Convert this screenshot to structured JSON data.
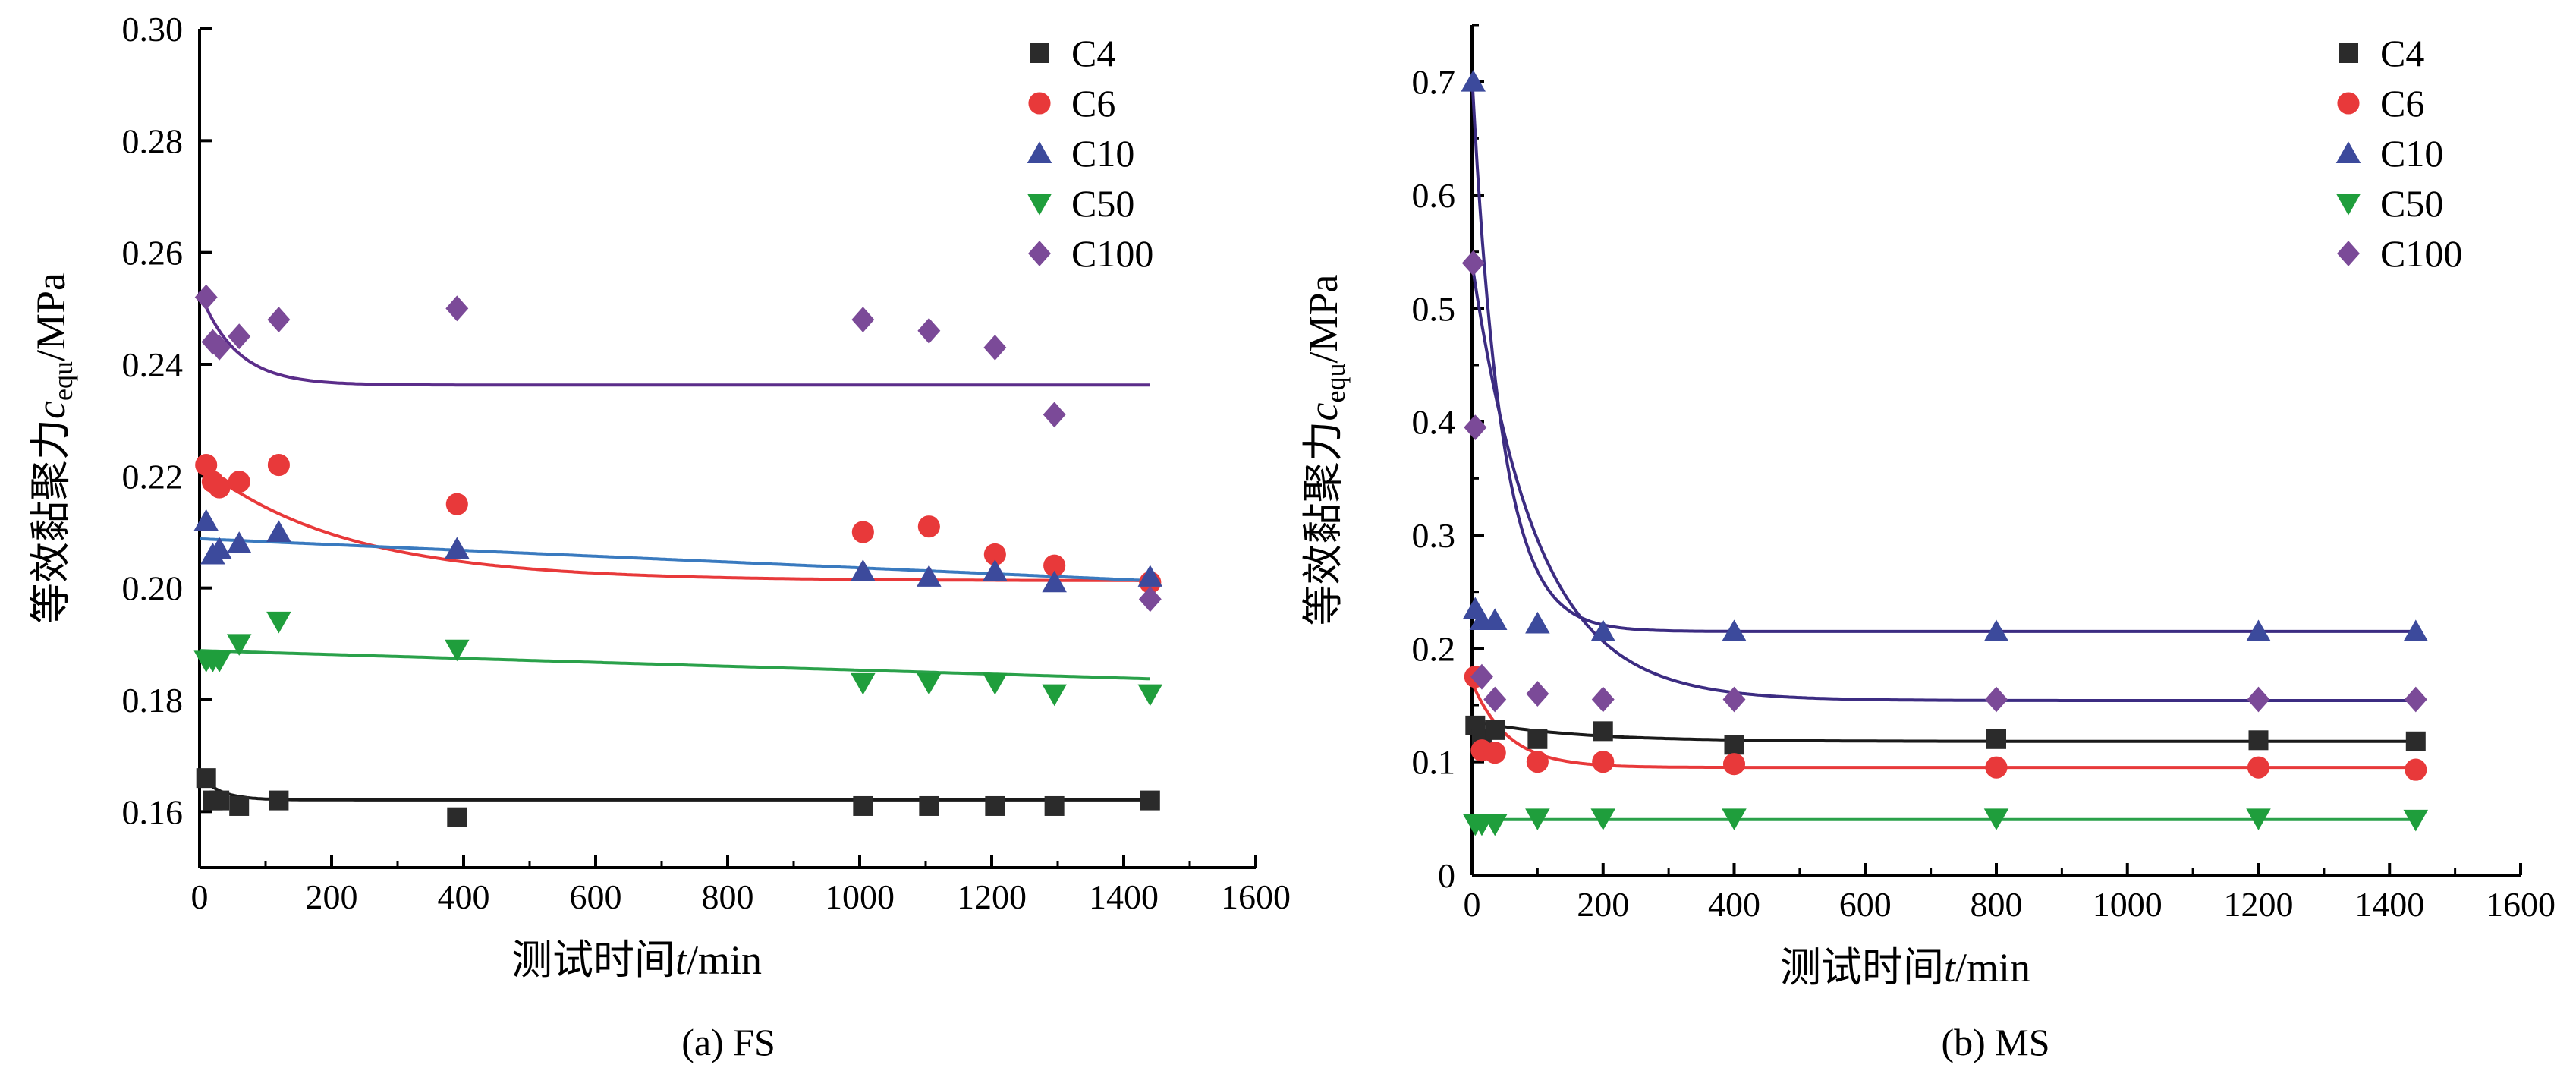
{
  "chart_data": [
    {
      "type": "scatter",
      "caption": "(a) FS",
      "ylabel_parts": [
        "等效黏聚力",
        "c",
        "equ",
        "/MPa"
      ],
      "xlabel_parts": [
        "测试时间",
        "t",
        "/min"
      ],
      "xlim": [
        0,
        1600
      ],
      "ylim": [
        0.15,
        0.3
      ],
      "xticks": [
        0,
        200,
        400,
        600,
        800,
        1000,
        1200,
        1400,
        1600
      ],
      "yticks": [
        0.16,
        0.18,
        0.2,
        0.22,
        0.24,
        0.26,
        0.28,
        0.3
      ],
      "ytick_labels": [
        "0.16",
        "0.18",
        "0.20",
        "0.22",
        "0.24",
        "0.26",
        "0.28",
        "0.30"
      ],
      "legend_position": "top-right",
      "series": [
        {
          "name": "C4",
          "marker": "square",
          "color": "#2b2b2b",
          "line_color": "#1a1a1a",
          "points": [
            [
              10,
              0.166
            ],
            [
              20,
              0.162
            ],
            [
              30,
              0.162
            ],
            [
              60,
              0.161
            ],
            [
              120,
              0.162
            ],
            [
              390,
              0.159
            ],
            [
              1005,
              0.161
            ],
            [
              1105,
              0.161
            ],
            [
              1205,
              0.161
            ],
            [
              1295,
              0.161
            ],
            [
              1440,
              0.162
            ]
          ],
          "fit": {
            "a": 0.1621,
            "b": 0.0045,
            "tau": 30
          }
        },
        {
          "name": "C6",
          "marker": "circle",
          "color": "#e8393a",
          "line_color": "#e8393a",
          "points": [
            [
              10,
              0.222
            ],
            [
              20,
              0.219
            ],
            [
              30,
              0.218
            ],
            [
              60,
              0.219
            ],
            [
              120,
              0.222
            ],
            [
              390,
              0.215
            ],
            [
              1005,
              0.21
            ],
            [
              1105,
              0.211
            ],
            [
              1205,
              0.206
            ],
            [
              1295,
              0.204
            ],
            [
              1440,
              0.201
            ]
          ],
          "fit": {
            "a": 0.2013,
            "b": 0.0207,
            "tau": 220
          }
        },
        {
          "name": "C10",
          "marker": "triangle-up",
          "color": "#3c4a9c",
          "line_color": "#3a7abf",
          "points": [
            [
              10,
              0.212
            ],
            [
              20,
              0.206
            ],
            [
              30,
              0.207
            ],
            [
              60,
              0.208
            ],
            [
              120,
              0.21
            ],
            [
              390,
              0.207
            ],
            [
              1005,
              0.203
            ],
            [
              1105,
              0.202
            ],
            [
              1205,
              0.203
            ],
            [
              1295,
              0.201
            ],
            [
              1440,
              0.202
            ]
          ],
          "fit": {
            "a": 0.2088,
            "b": -5.2e-06
          }
        },
        {
          "name": "C50",
          "marker": "triangle-down",
          "color": "#1f9e3c",
          "line_color": "#2aa14a",
          "points": [
            [
              10,
              0.187
            ],
            [
              20,
              0.187
            ],
            [
              30,
              0.187
            ],
            [
              60,
              0.19
            ],
            [
              120,
              0.194
            ],
            [
              390,
              0.189
            ],
            [
              1005,
              0.183
            ],
            [
              1105,
              0.183
            ],
            [
              1205,
              0.183
            ],
            [
              1295,
              0.181
            ],
            [
              1440,
              0.181
            ]
          ],
          "fit": {
            "a": 0.1888,
            "b": -3.5e-06
          }
        },
        {
          "name": "C100",
          "marker": "diamond",
          "color": "#7b4a98",
          "line_color": "#5b2d8a",
          "points": [
            [
              10,
              0.252
            ],
            [
              20,
              0.244
            ],
            [
              30,
              0.243
            ],
            [
              60,
              0.245
            ],
            [
              120,
              0.248
            ],
            [
              390,
              0.25
            ],
            [
              1005,
              0.248
            ],
            [
              1105,
              0.246
            ],
            [
              1205,
              0.243
            ],
            [
              1295,
              0.231
            ],
            [
              1440,
              0.198
            ]
          ],
          "fit": {
            "a": 0.2363,
            "b": 0.0167,
            "tau": 55
          }
        }
      ]
    },
    {
      "type": "scatter",
      "caption": "(b) MS",
      "ylabel_parts": [
        "等效黏聚力",
        "c",
        "equ",
        "/MPa"
      ],
      "xlabel_parts": [
        "测试时间",
        "t",
        "/min"
      ],
      "xlim": [
        0,
        1600
      ],
      "ylim": [
        0,
        0.75
      ],
      "xticks": [
        0,
        200,
        400,
        600,
        800,
        1000,
        1200,
        1400,
        1600
      ],
      "yticks": [
        0,
        0.1,
        0.2,
        0.3,
        0.4,
        0.5,
        0.6,
        0.7
      ],
      "ytick_labels": [
        "0",
        "0.1",
        "0.2",
        "0.3",
        "0.4",
        "0.5",
        "0.6",
        "0.7"
      ],
      "legend_position": "top-right",
      "series": [
        {
          "name": "C4",
          "marker": "square",
          "color": "#2b2b2b",
          "line_color": "#1a1a1a",
          "points": [
            [
              5,
              0.132
            ],
            [
              15,
              0.12
            ],
            [
              35,
              0.128
            ],
            [
              100,
              0.12
            ],
            [
              200,
              0.127
            ],
            [
              400,
              0.115
            ],
            [
              800,
              0.12
            ],
            [
              1200,
              0.119
            ],
            [
              1440,
              0.118
            ]
          ],
          "fit": {
            "a": 0.118,
            "b": 0.018,
            "tau": 150
          }
        },
        {
          "name": "C6",
          "marker": "circle",
          "color": "#e8393a",
          "line_color": "#e8393a",
          "points": [
            [
              5,
              0.175
            ],
            [
              15,
              0.11
            ],
            [
              35,
              0.108
            ],
            [
              100,
              0.1
            ],
            [
              200,
              0.1
            ],
            [
              400,
              0.098
            ],
            [
              800,
              0.095
            ],
            [
              1200,
              0.095
            ],
            [
              1440,
              0.093
            ]
          ],
          "fit": {
            "a": 0.095,
            "b": 0.075,
            "tau": 55
          }
        },
        {
          "name": "C10",
          "marker": "triangle-up",
          "color": "#3c4a9c",
          "line_color": "#3c2c82",
          "points": [
            [
              2,
              0.7
            ],
            [
              5,
              0.235
            ],
            [
              15,
              0.225
            ],
            [
              35,
              0.225
            ],
            [
              100,
              0.222
            ],
            [
              200,
              0.215
            ],
            [
              400,
              0.215
            ],
            [
              800,
              0.215
            ],
            [
              1200,
              0.215
            ],
            [
              1440,
              0.215
            ]
          ],
          "fit": {
            "a": 0.215,
            "b": 0.49,
            "tau": 45
          }
        },
        {
          "name": "C50",
          "marker": "triangle-down",
          "color": "#1f9e3c",
          "line_color": "#2aa14a",
          "points": [
            [
              5,
              0.045
            ],
            [
              15,
              0.045
            ],
            [
              35,
              0.045
            ],
            [
              100,
              0.05
            ],
            [
              200,
              0.05
            ],
            [
              400,
              0.05
            ],
            [
              800,
              0.05
            ],
            [
              1200,
              0.05
            ],
            [
              1440,
              0.049
            ]
          ],
          "fit": {
            "a": 0.049,
            "b": 0.0,
            "tau": 50
          }
        },
        {
          "name": "C100",
          "marker": "diamond",
          "color": "#7b4a98",
          "line_color": "#3c2c82",
          "points": [
            [
              2,
              0.54
            ],
            [
              5,
              0.395
            ],
            [
              15,
              0.175
            ],
            [
              35,
              0.155
            ],
            [
              100,
              0.16
            ],
            [
              200,
              0.155
            ],
            [
              400,
              0.155
            ],
            [
              800,
              0.155
            ],
            [
              1200,
              0.155
            ],
            [
              1440,
              0.155
            ]
          ],
          "fit": {
            "a": 0.154,
            "b": 0.386,
            "tau": 100
          }
        }
      ]
    }
  ]
}
